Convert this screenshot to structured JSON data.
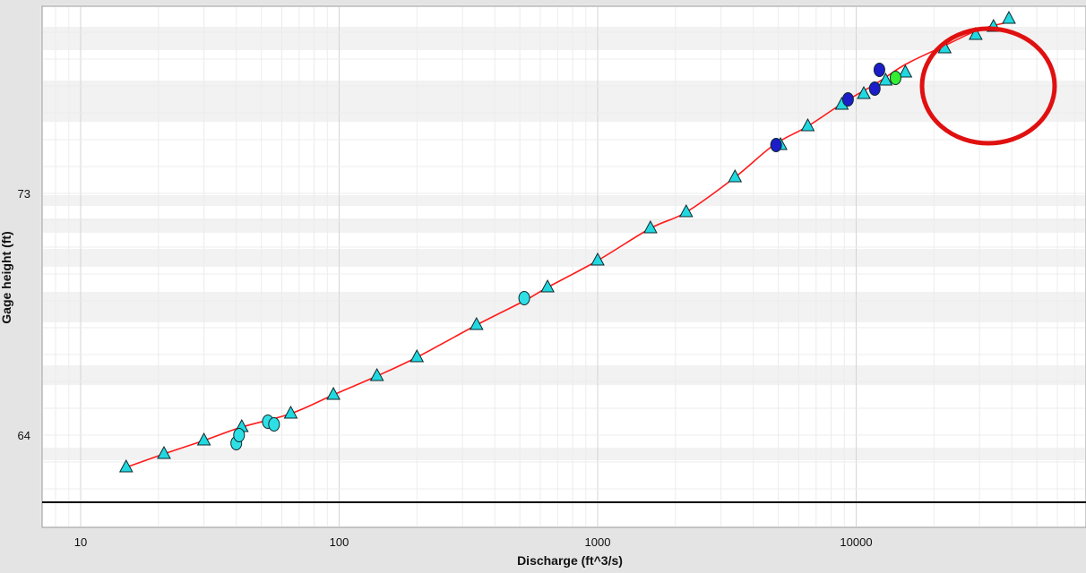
{
  "chart_data": {
    "type": "scatter",
    "xlabel": "Discharge (ft^3/s)",
    "ylabel": "Gage height (ft)",
    "x_scale": "log",
    "x_ticks": [
      "10",
      "100",
      "1000",
      "10000"
    ],
    "y_ticks": [
      "73",
      "64"
    ],
    "xlim": [
      7,
      130000
    ],
    "ylim": [
      61.5,
      80.3
    ],
    "grid": true,
    "legend": "none",
    "colors": {
      "rating_curve": "#ff1a1a",
      "triangle_fill": "#22d8e0",
      "circle_cyan": "#2ee0e6",
      "circle_blue": "#1c1cc8",
      "circle_green": "#33ee33",
      "annotation": "#e01010",
      "baseline": "#000000"
    },
    "curve": {
      "x": [
        15,
        21,
        30,
        42,
        65,
        95,
        140,
        200,
        340,
        520,
        640,
        1000,
        1600,
        2200,
        3400,
        4800,
        6500,
        9000,
        12000,
        15500,
        22000,
        30000,
        40000
      ],
      "y": [
        62.8,
        63.3,
        63.8,
        64.3,
        64.8,
        65.5,
        66.2,
        66.9,
        68.1,
        69.0,
        69.5,
        70.5,
        71.7,
        72.3,
        73.6,
        74.8,
        75.5,
        76.4,
        77.1,
        77.8,
        78.5,
        79.1,
        79.4
      ]
    },
    "series": [
      {
        "marker": "triangle",
        "x": [
          15,
          21,
          30,
          42,
          65,
          95,
          140,
          200,
          340,
          640,
          1000,
          1600,
          2200,
          3400,
          5100,
          6500,
          8800,
          10700,
          13000,
          15500,
          22000,
          29000,
          34000,
          39000
        ],
        "y": [
          62.8,
          63.3,
          63.8,
          64.3,
          64.8,
          65.5,
          66.2,
          66.9,
          68.1,
          69.5,
          70.5,
          71.7,
          72.3,
          73.6,
          74.8,
          75.5,
          76.3,
          76.7,
          77.2,
          77.5,
          78.4,
          78.9,
          79.2,
          79.5
        ]
      },
      {
        "marker": "circle-cyan",
        "x": [
          40,
          41,
          53,
          56,
          520
        ],
        "y": [
          63.7,
          64.0,
          64.5,
          64.4,
          69.1
        ]
      },
      {
        "marker": "circle-blue",
        "x": [
          4900,
          9300,
          11800,
          12300
        ],
        "y": [
          74.8,
          76.5,
          76.9,
          77.6
        ]
      },
      {
        "marker": "circle-green",
        "x": [
          14200
        ],
        "y": [
          77.3
        ]
      }
    ],
    "annotations": [
      {
        "type": "ellipse",
        "color": "red",
        "around": "points above 20000 ft^3/s"
      }
    ]
  }
}
